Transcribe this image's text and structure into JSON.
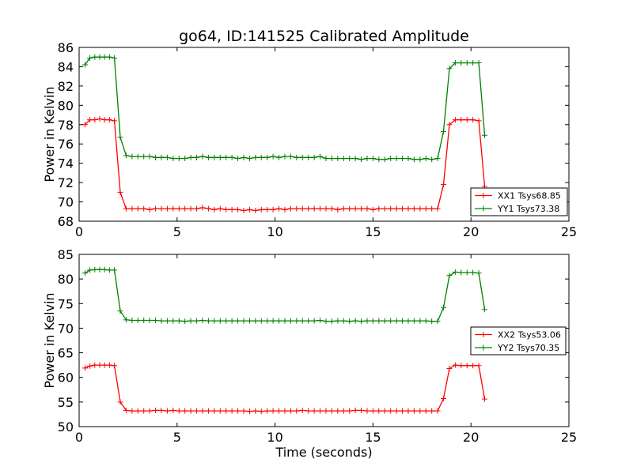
{
  "chart_data": [
    {
      "type": "line",
      "title": "go64, ID:141525 Calibrated Amplitude",
      "xlabel": "",
      "ylabel": "Power in Kelvin",
      "xlim": [
        0,
        25
      ],
      "ylim": [
        68,
        86
      ],
      "xticks": [
        0,
        5,
        10,
        15,
        20,
        25
      ],
      "yticks": [
        68,
        70,
        72,
        74,
        76,
        78,
        80,
        82,
        84,
        86
      ],
      "legend_position": "lower-right",
      "x": [
        0.3,
        0.55,
        0.8,
        1.05,
        1.3,
        1.55,
        1.8,
        2.1,
        2.4,
        2.7,
        3.0,
        3.3,
        3.6,
        3.9,
        4.2,
        4.5,
        4.8,
        5.1,
        5.4,
        5.7,
        6.0,
        6.3,
        6.6,
        6.9,
        7.2,
        7.5,
        7.8,
        8.1,
        8.4,
        8.7,
        9.0,
        9.3,
        9.6,
        9.9,
        10.2,
        10.5,
        10.8,
        11.1,
        11.4,
        11.7,
        12.0,
        12.3,
        12.6,
        12.9,
        13.2,
        13.5,
        13.8,
        14.1,
        14.4,
        14.7,
        15.0,
        15.3,
        15.6,
        15.9,
        16.2,
        16.5,
        16.8,
        17.1,
        17.4,
        17.7,
        18.0,
        18.3,
        18.6,
        18.9,
        19.2,
        19.5,
        19.8,
        20.1,
        20.4,
        20.7
      ],
      "series": [
        {
          "name": "XX1 Tsys68.85",
          "color": "#ff0000",
          "values": [
            78.0,
            78.5,
            78.5,
            78.6,
            78.5,
            78.5,
            78.4,
            71.0,
            69.3,
            69.3,
            69.3,
            69.3,
            69.2,
            69.3,
            69.3,
            69.3,
            69.3,
            69.3,
            69.3,
            69.3,
            69.3,
            69.4,
            69.3,
            69.2,
            69.3,
            69.2,
            69.2,
            69.2,
            69.1,
            69.2,
            69.1,
            69.2,
            69.2,
            69.2,
            69.3,
            69.2,
            69.3,
            69.3,
            69.3,
            69.3,
            69.3,
            69.3,
            69.3,
            69.3,
            69.2,
            69.3,
            69.3,
            69.3,
            69.3,
            69.3,
            69.2,
            69.3,
            69.3,
            69.3,
            69.3,
            69.3,
            69.3,
            69.3,
            69.3,
            69.3,
            69.3,
            69.3,
            71.8,
            78.0,
            78.5,
            78.5,
            78.5,
            78.5,
            78.4,
            71.6
          ]
        },
        {
          "name": "YY1 Tsys73.38",
          "color": "#008000",
          "values": [
            84.2,
            84.9,
            85.0,
            85.0,
            85.0,
            85.0,
            84.9,
            76.7,
            74.8,
            74.7,
            74.7,
            74.7,
            74.7,
            74.6,
            74.6,
            74.6,
            74.5,
            74.5,
            74.5,
            74.6,
            74.6,
            74.7,
            74.6,
            74.6,
            74.6,
            74.6,
            74.6,
            74.5,
            74.6,
            74.5,
            74.6,
            74.6,
            74.6,
            74.7,
            74.6,
            74.7,
            74.7,
            74.6,
            74.6,
            74.6,
            74.6,
            74.7,
            74.5,
            74.5,
            74.5,
            74.5,
            74.5,
            74.5,
            74.4,
            74.5,
            74.5,
            74.4,
            74.4,
            74.5,
            74.5,
            74.5,
            74.5,
            74.4,
            74.4,
            74.5,
            74.4,
            74.5,
            77.3,
            83.8,
            84.4,
            84.4,
            84.4,
            84.4,
            84.4,
            76.9
          ]
        }
      ]
    },
    {
      "type": "line",
      "title": "",
      "xlabel": "Time (seconds)",
      "ylabel": "Power in Kelvin",
      "xlim": [
        0,
        25
      ],
      "ylim": [
        50,
        85
      ],
      "xticks": [
        0,
        5,
        10,
        15,
        20,
        25
      ],
      "yticks": [
        50,
        55,
        60,
        65,
        70,
        75,
        80,
        85
      ],
      "legend_position": "center-right",
      "x": [
        0.3,
        0.55,
        0.8,
        1.05,
        1.3,
        1.55,
        1.8,
        2.1,
        2.4,
        2.7,
        3.0,
        3.3,
        3.6,
        3.9,
        4.2,
        4.5,
        4.8,
        5.1,
        5.4,
        5.7,
        6.0,
        6.3,
        6.6,
        6.9,
        7.2,
        7.5,
        7.8,
        8.1,
        8.4,
        8.7,
        9.0,
        9.3,
        9.6,
        9.9,
        10.2,
        10.5,
        10.8,
        11.1,
        11.4,
        11.7,
        12.0,
        12.3,
        12.6,
        12.9,
        13.2,
        13.5,
        13.8,
        14.1,
        14.4,
        14.7,
        15.0,
        15.3,
        15.6,
        15.9,
        16.2,
        16.5,
        16.8,
        17.1,
        17.4,
        17.7,
        18.0,
        18.3,
        18.6,
        18.9,
        19.2,
        19.5,
        19.8,
        20.1,
        20.4,
        20.7
      ],
      "series": [
        {
          "name": "XX2 Tsys53.06",
          "color": "#ff0000",
          "values": [
            61.9,
            62.3,
            62.5,
            62.5,
            62.5,
            62.5,
            62.4,
            55.0,
            53.3,
            53.2,
            53.2,
            53.2,
            53.2,
            53.3,
            53.3,
            53.2,
            53.3,
            53.2,
            53.2,
            53.2,
            53.2,
            53.2,
            53.2,
            53.2,
            53.2,
            53.2,
            53.2,
            53.2,
            53.2,
            53.1,
            53.2,
            53.1,
            53.2,
            53.2,
            53.2,
            53.2,
            53.2,
            53.2,
            53.3,
            53.2,
            53.2,
            53.2,
            53.2,
            53.2,
            53.2,
            53.2,
            53.2,
            53.3,
            53.3,
            53.2,
            53.2,
            53.2,
            53.2,
            53.2,
            53.2,
            53.2,
            53.2,
            53.2,
            53.2,
            53.2,
            53.2,
            53.2,
            55.7,
            61.8,
            62.5,
            62.4,
            62.4,
            62.4,
            62.4,
            55.6
          ]
        },
        {
          "name": "YY2 Tsys70.35",
          "color": "#008000",
          "values": [
            81.2,
            81.8,
            81.9,
            81.9,
            81.9,
            81.8,
            81.8,
            73.5,
            71.7,
            71.6,
            71.6,
            71.6,
            71.6,
            71.6,
            71.5,
            71.5,
            71.5,
            71.5,
            71.4,
            71.5,
            71.5,
            71.6,
            71.5,
            71.5,
            71.5,
            71.5,
            71.5,
            71.5,
            71.5,
            71.5,
            71.5,
            71.5,
            71.5,
            71.5,
            71.5,
            71.5,
            71.5,
            71.5,
            71.5,
            71.5,
            71.5,
            71.6,
            71.4,
            71.4,
            71.5,
            71.5,
            71.4,
            71.5,
            71.4,
            71.5,
            71.5,
            71.5,
            71.5,
            71.5,
            71.5,
            71.5,
            71.5,
            71.5,
            71.5,
            71.5,
            71.4,
            71.4,
            74.2,
            80.7,
            81.4,
            81.3,
            81.3,
            81.3,
            81.2,
            73.8
          ]
        }
      ]
    }
  ]
}
